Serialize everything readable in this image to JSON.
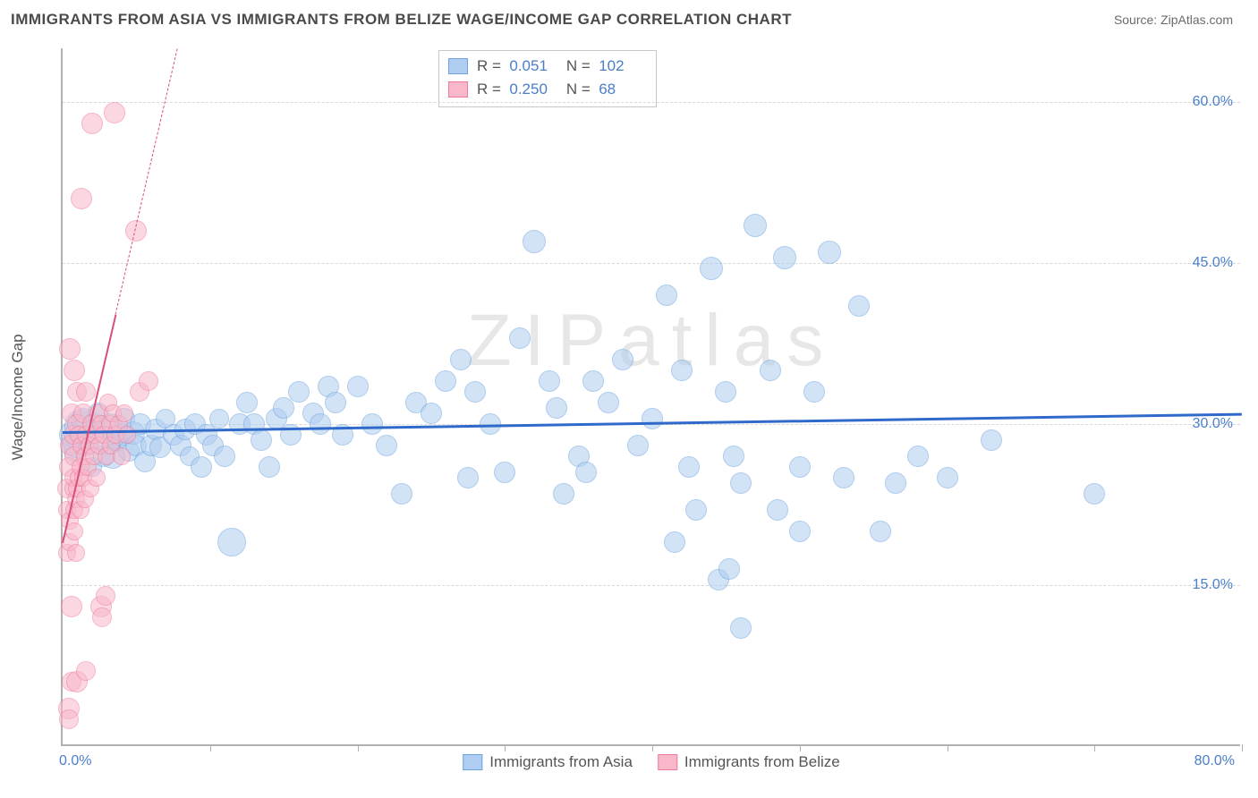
{
  "title": "IMMIGRANTS FROM ASIA VS IMMIGRANTS FROM BELIZE WAGE/INCOME GAP CORRELATION CHART",
  "source": "Source: ZipAtlas.com",
  "watermark": "ZIPatlas",
  "ylabel": "Wage/Income Gap",
  "xlim": [
    0,
    80
  ],
  "ylim": [
    0,
    65
  ],
  "x_min_label": "0.0%",
  "x_max_label": "80.0%",
  "y_ticks": [
    {
      "v": 15,
      "label": "15.0%"
    },
    {
      "v": 30,
      "label": "30.0%"
    },
    {
      "v": 45,
      "label": "45.0%"
    },
    {
      "v": 60,
      "label": "60.0%"
    }
  ],
  "x_tick_vals": [
    0,
    10,
    20,
    30,
    40,
    50,
    60,
    70,
    80
  ],
  "series": [
    {
      "name": "Immigrants from Asia",
      "label": "Immigrants from Asia",
      "fill": "#aecdf0",
      "stroke": "#6da3e0",
      "fill_opacity": 0.55,
      "R": "0.051",
      "N": "102",
      "trend": {
        "y0": 29.3,
        "y1": 31.0,
        "color": "#2f6acb",
        "width": 3,
        "dashed": false,
        "extend_x": 80
      },
      "points": [
        [
          0.6,
          29,
          14
        ],
        [
          0.8,
          27.5,
          12
        ],
        [
          1.0,
          28.2,
          16
        ],
        [
          1.2,
          29.8,
          18
        ],
        [
          1.4,
          30.3,
          14
        ],
        [
          1.6,
          28.0,
          12
        ],
        [
          2.0,
          26.0,
          11
        ],
        [
          2.2,
          30.0,
          13
        ],
        [
          2.4,
          31.0,
          12
        ],
        [
          2.8,
          27.0,
          12
        ],
        [
          3.0,
          28.5,
          16
        ],
        [
          3.2,
          29.8,
          14
        ],
        [
          3.4,
          27.0,
          14
        ],
        [
          3.7,
          28.5,
          12
        ],
        [
          4.0,
          29.0,
          13
        ],
        [
          4.2,
          30.5,
          12
        ],
        [
          4.5,
          27.5,
          12
        ],
        [
          4.8,
          29.2,
          13
        ],
        [
          5.0,
          28.0,
          12
        ],
        [
          5.3,
          30.0,
          12
        ],
        [
          5.6,
          26.5,
          12
        ],
        [
          6.0,
          28.0,
          12
        ],
        [
          6.3,
          29.5,
          12
        ],
        [
          6.6,
          27.8,
          12
        ],
        [
          7.0,
          30.5,
          11
        ],
        [
          7.5,
          29.0,
          12
        ],
        [
          8.0,
          28.0,
          12
        ],
        [
          8.3,
          29.5,
          12
        ],
        [
          8.6,
          27.0,
          11
        ],
        [
          9.0,
          30.0,
          12
        ],
        [
          9.4,
          26.0,
          12
        ],
        [
          9.8,
          29.0,
          12
        ],
        [
          10.2,
          28.0,
          12
        ],
        [
          10.6,
          30.5,
          11
        ],
        [
          11.0,
          27.0,
          12
        ],
        [
          11.5,
          19.0,
          16
        ],
        [
          12.0,
          30.0,
          12
        ],
        [
          12.5,
          32.0,
          12
        ],
        [
          13.0,
          30.0,
          12
        ],
        [
          13.5,
          28.5,
          12
        ],
        [
          14.0,
          26.0,
          12
        ],
        [
          14.5,
          30.5,
          12
        ],
        [
          15.0,
          31.5,
          12
        ],
        [
          15.5,
          29.0,
          12
        ],
        [
          16.0,
          33.0,
          12
        ],
        [
          17.0,
          31.0,
          12
        ],
        [
          17.5,
          30.0,
          12
        ],
        [
          18.0,
          33.5,
          12
        ],
        [
          18.5,
          32.0,
          12
        ],
        [
          19.0,
          29.0,
          12
        ],
        [
          20.0,
          33.5,
          12
        ],
        [
          21.0,
          30.0,
          12
        ],
        [
          22.0,
          28.0,
          12
        ],
        [
          23.0,
          23.5,
          12
        ],
        [
          24.0,
          32.0,
          12
        ],
        [
          25.0,
          31.0,
          12
        ],
        [
          26.0,
          34.0,
          12
        ],
        [
          27.0,
          36.0,
          12
        ],
        [
          27.5,
          25.0,
          12
        ],
        [
          28.0,
          33.0,
          12
        ],
        [
          29.0,
          30.0,
          12
        ],
        [
          30.0,
          25.5,
          12
        ],
        [
          31.0,
          38.0,
          12
        ],
        [
          32.0,
          47.0,
          13
        ],
        [
          33.0,
          34.0,
          12
        ],
        [
          33.5,
          31.5,
          12
        ],
        [
          34.0,
          23.5,
          12
        ],
        [
          35.0,
          27.0,
          12
        ],
        [
          35.5,
          25.5,
          12
        ],
        [
          36.0,
          34.0,
          12
        ],
        [
          37.0,
          32.0,
          12
        ],
        [
          38.0,
          36.0,
          12
        ],
        [
          39.0,
          28.0,
          12
        ],
        [
          40.0,
          30.5,
          12
        ],
        [
          41.0,
          42.0,
          12
        ],
        [
          41.5,
          19.0,
          12
        ],
        [
          42.0,
          35.0,
          12
        ],
        [
          42.5,
          26.0,
          12
        ],
        [
          43.0,
          22.0,
          12
        ],
        [
          44.0,
          44.5,
          13
        ],
        [
          44.5,
          15.5,
          12
        ],
        [
          45.0,
          33.0,
          12
        ],
        [
          45.2,
          16.5,
          12
        ],
        [
          45.5,
          27.0,
          12
        ],
        [
          46.0,
          24.5,
          12
        ],
        [
          46.0,
          11.0,
          12
        ],
        [
          47.0,
          48.5,
          13
        ],
        [
          48.0,
          35.0,
          12
        ],
        [
          48.5,
          22.0,
          12
        ],
        [
          49.0,
          45.5,
          13
        ],
        [
          50.0,
          26.0,
          12
        ],
        [
          50.0,
          20.0,
          12
        ],
        [
          51.0,
          33.0,
          12
        ],
        [
          52.0,
          46.0,
          13
        ],
        [
          53.0,
          25.0,
          12
        ],
        [
          54.0,
          41.0,
          12
        ],
        [
          55.5,
          20.0,
          12
        ],
        [
          56.5,
          24.5,
          12
        ],
        [
          58.0,
          27.0,
          12
        ],
        [
          60.0,
          25.0,
          12
        ],
        [
          63.0,
          28.5,
          12
        ],
        [
          70.0,
          23.5,
          12
        ]
      ]
    },
    {
      "name": "Immigrants from Belize",
      "label": "Immigrants from Belize",
      "fill": "#f8b8ca",
      "stroke": "#ee7a9b",
      "fill_opacity": 0.55,
      "R": "0.250",
      "N": "68",
      "trend": {
        "y0": 19.0,
        "y1": 65.0,
        "at_x": 7.8,
        "color": "#d94f76",
        "width": 2.5,
        "dashed_after_x": 3.6
      },
      "points": [
        [
          0.3,
          24,
          11
        ],
        [
          0.3,
          18,
          10
        ],
        [
          0.3,
          22,
          10
        ],
        [
          0.4,
          3.5,
          12
        ],
        [
          0.4,
          2.5,
          11
        ],
        [
          0.4,
          26,
          11
        ],
        [
          0.5,
          21,
          10
        ],
        [
          0.5,
          19,
          10
        ],
        [
          0.5,
          28,
          11
        ],
        [
          0.5,
          37,
          12
        ],
        [
          0.6,
          6,
          11
        ],
        [
          0.6,
          13,
          12
        ],
        [
          0.6,
          31,
          11
        ],
        [
          0.7,
          24,
          10
        ],
        [
          0.7,
          25,
          10
        ],
        [
          0.7,
          29,
          11
        ],
        [
          0.8,
          22,
          10
        ],
        [
          0.8,
          20,
          10
        ],
        [
          0.8,
          35,
          12
        ],
        [
          0.8,
          27,
          11
        ],
        [
          0.9,
          23,
          10
        ],
        [
          0.9,
          18,
          10
        ],
        [
          1.0,
          30,
          11
        ],
        [
          1.0,
          24,
          10
        ],
        [
          1.0,
          33,
          11
        ],
        [
          1.1,
          25,
          10
        ],
        [
          1.1,
          29,
          10
        ],
        [
          1.2,
          26,
          10
        ],
        [
          1.2,
          22,
          10
        ],
        [
          1.3,
          51,
          12
        ],
        [
          1.3,
          28,
          10
        ],
        [
          1.4,
          31,
          11
        ],
        [
          1.4,
          25,
          10
        ],
        [
          1.5,
          27,
          10
        ],
        [
          1.5,
          23,
          10
        ],
        [
          1.6,
          29,
          10
        ],
        [
          1.6,
          33,
          11
        ],
        [
          1.7,
          26,
          10
        ],
        [
          1.8,
          28,
          10
        ],
        [
          1.9,
          24,
          10
        ],
        [
          2.0,
          30,
          11
        ],
        [
          2.0,
          58,
          12
        ],
        [
          2.1,
          27,
          10
        ],
        [
          2.2,
          29,
          10
        ],
        [
          2.3,
          25,
          10
        ],
        [
          2.4,
          31,
          10
        ],
        [
          2.5,
          28,
          10
        ],
        [
          2.6,
          13,
          12
        ],
        [
          2.6,
          30,
          10
        ],
        [
          2.7,
          12,
          11
        ],
        [
          2.8,
          29,
          10
        ],
        [
          2.9,
          14,
          11
        ],
        [
          3.0,
          27,
          10
        ],
        [
          3.1,
          32,
          10
        ],
        [
          3.2,
          30,
          10
        ],
        [
          3.3,
          28,
          10
        ],
        [
          3.4,
          31,
          10
        ],
        [
          3.5,
          59,
          12
        ],
        [
          3.6,
          29,
          10
        ],
        [
          3.8,
          30,
          10
        ],
        [
          4.0,
          27,
          10
        ],
        [
          4.2,
          31,
          10
        ],
        [
          4.4,
          29,
          10
        ],
        [
          5.0,
          48,
          12
        ],
        [
          5.2,
          33,
          11
        ],
        [
          5.8,
          34,
          11
        ],
        [
          1.0,
          6,
          12
        ],
        [
          1.6,
          7,
          11
        ]
      ]
    }
  ],
  "colors": {
    "axis": "#b0b0b0",
    "grid": "#d8d8d8",
    "tick_label": "#4a7ecb",
    "text": "#555555",
    "bg": "#ffffff"
  }
}
